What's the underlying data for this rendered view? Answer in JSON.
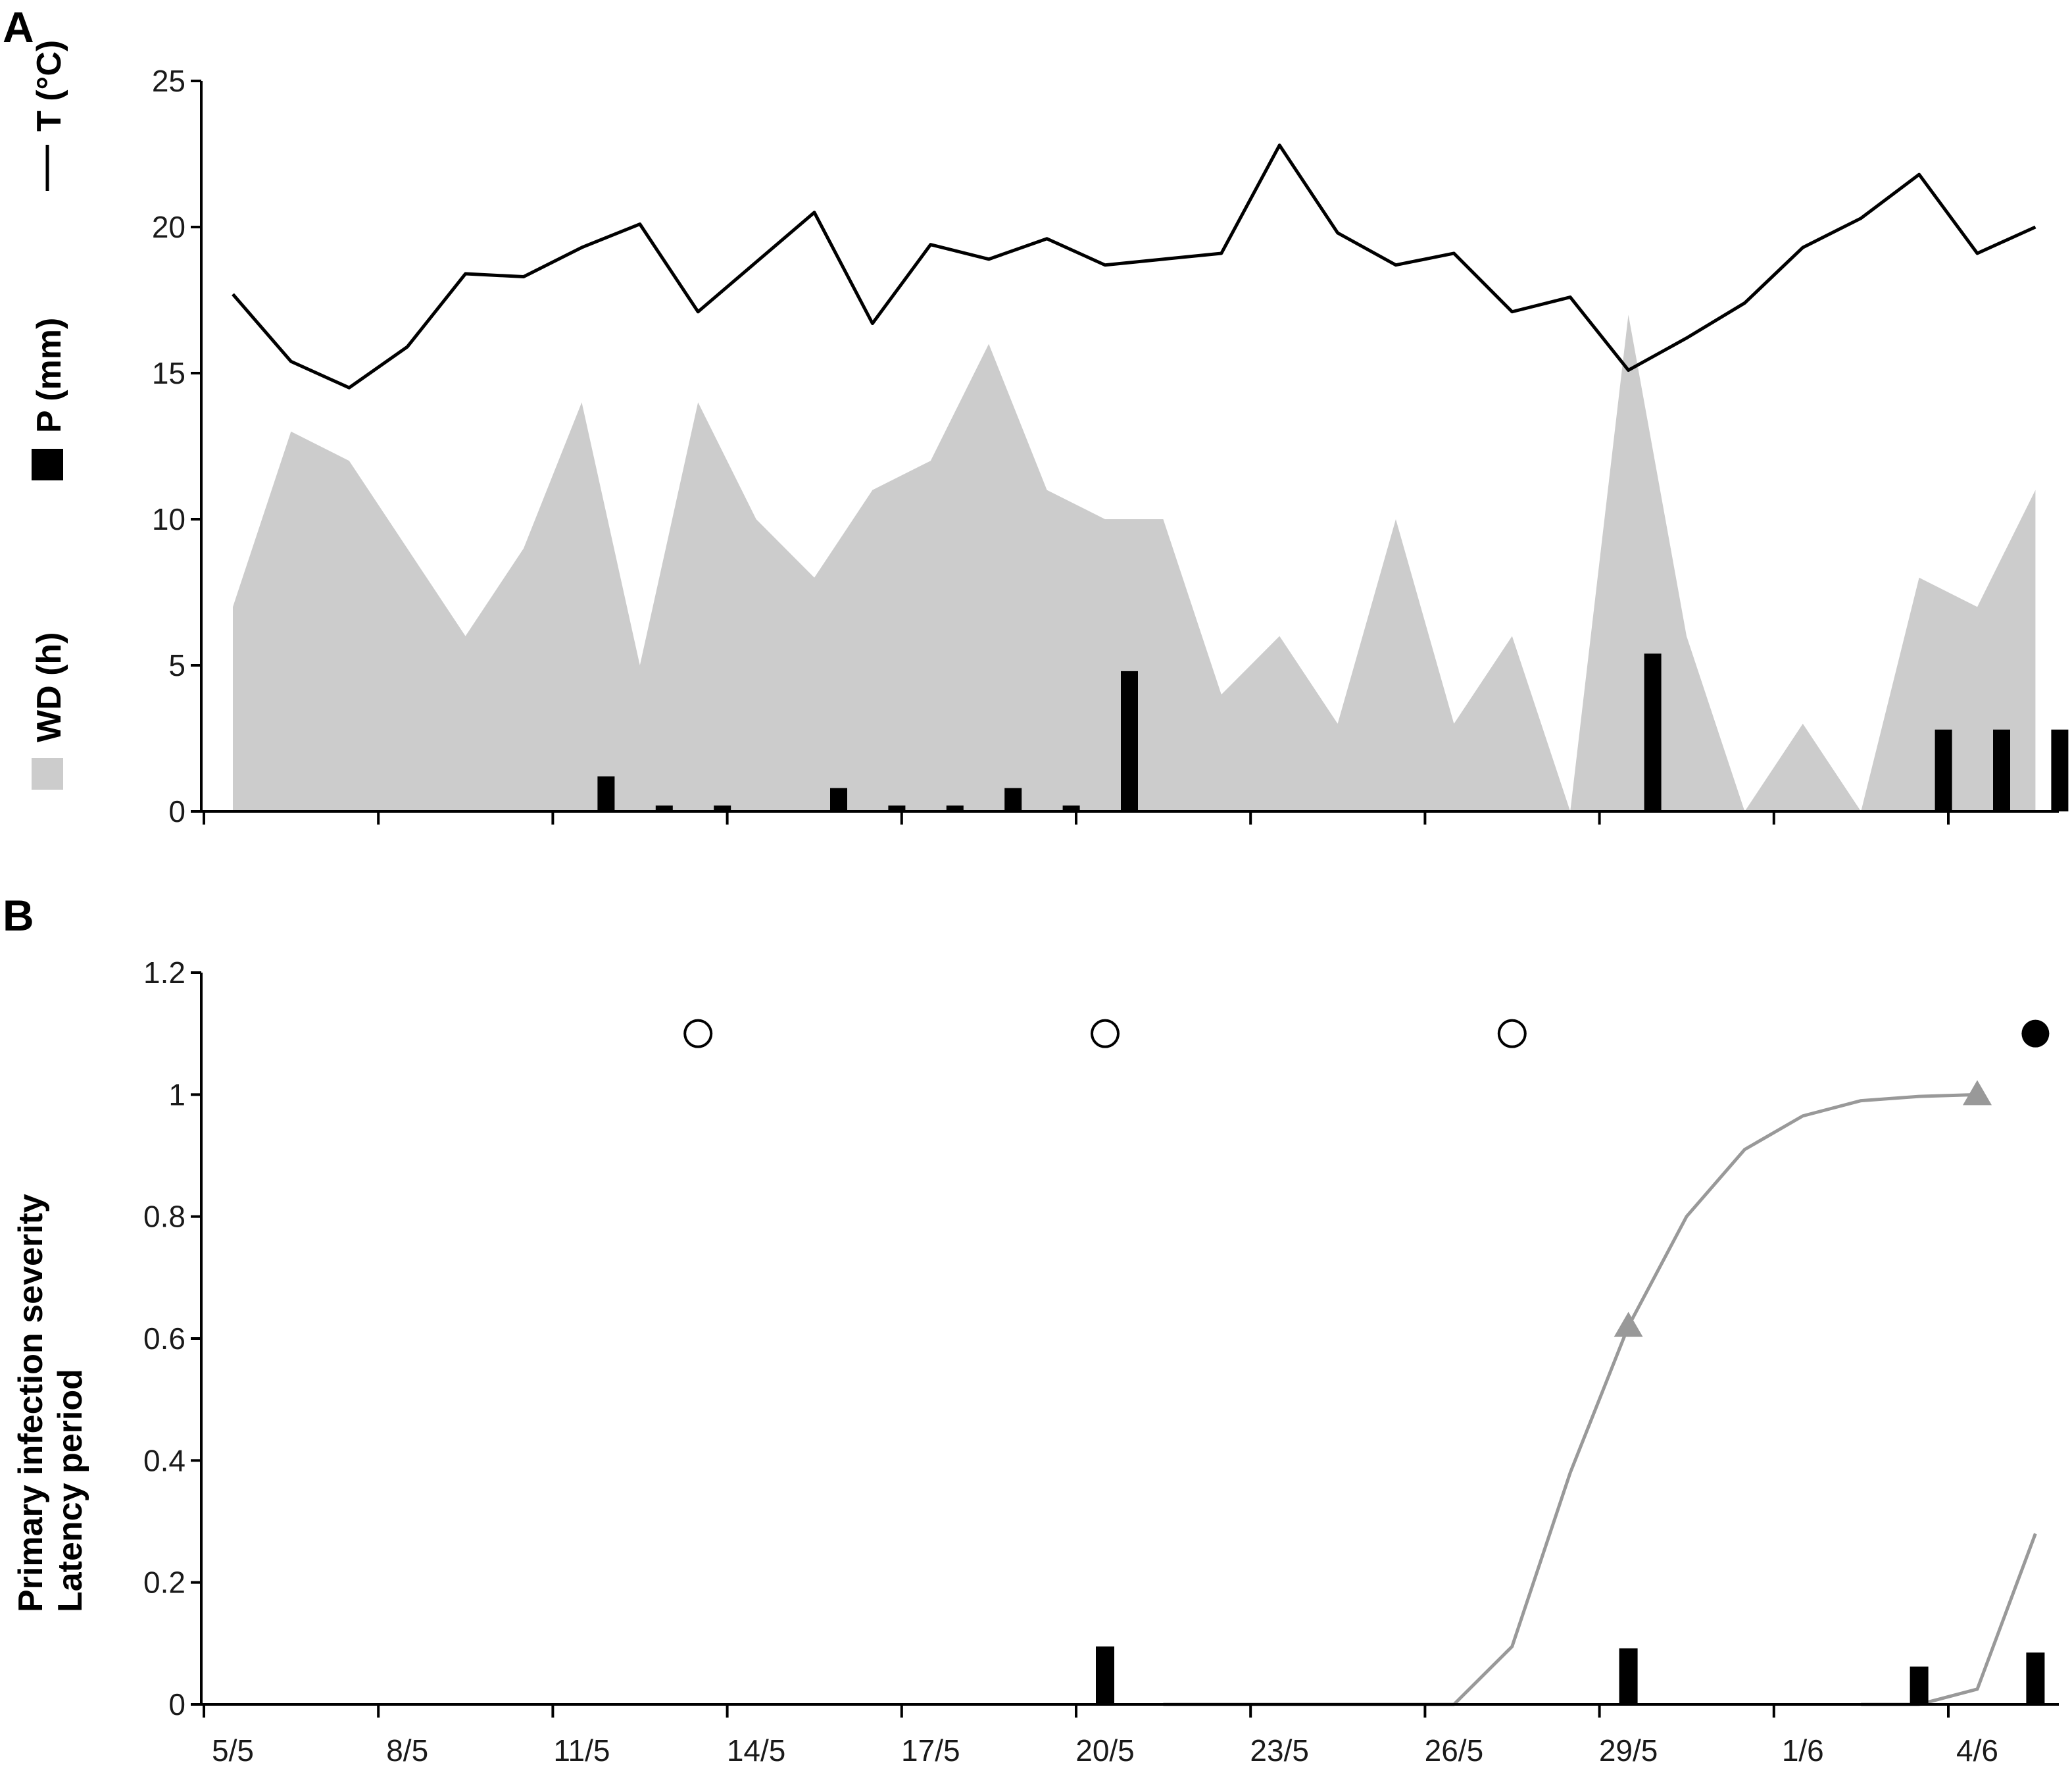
{
  "panel_labels": [
    "A",
    "B"
  ],
  "chart_data": [
    {
      "panel": "A",
      "type": "line",
      "x": [
        "5/5",
        "6/5",
        "7/5",
        "8/5",
        "9/5",
        "10/5",
        "11/5",
        "12/5",
        "13/5",
        "14/5",
        "15/5",
        "16/5",
        "17/5",
        "18/5",
        "19/5",
        "20/5",
        "21/5",
        "22/5",
        "23/5",
        "24/5",
        "25/5",
        "26/5",
        "27/5",
        "28/5",
        "29/5",
        "30/5",
        "31/5",
        "1/6",
        "2/6",
        "3/6",
        "4/6",
        "5/6"
      ],
      "xticks": [
        "5/5",
        "8/5",
        "11/5",
        "14/5",
        "17/5",
        "20/5",
        "23/5",
        "26/5",
        "29/5",
        "1/6",
        "4/6"
      ],
      "ylim": [
        0,
        25
      ],
      "yticks": [
        "0",
        "5",
        "10",
        "15",
        "20",
        "25"
      ],
      "ylabel_parts": [
        {
          "text": "WD (h)",
          "legend": "gray-area"
        },
        {
          "text": "P (mm)",
          "legend": "black-bar"
        },
        {
          "text": "T (°C)",
          "legend": "black-line"
        }
      ],
      "series": [
        {
          "name": "WD (h)",
          "type": "area",
          "color": "#cccccc",
          "values": [
            7,
            13,
            12,
            9,
            6,
            9,
            14,
            5,
            14,
            10,
            8,
            11,
            12,
            16,
            11,
            10,
            10,
            4,
            6,
            3,
            10,
            3,
            6,
            0,
            17,
            6,
            0,
            3,
            0,
            8,
            7,
            11
          ]
        },
        {
          "name": "P (mm)",
          "type": "bar",
          "color": "#000000",
          "values": [
            0,
            0,
            0,
            0,
            0,
            0,
            1.2,
            0.2,
            0.2,
            0,
            0.8,
            0.2,
            0.2,
            0.8,
            0.2,
            4.8,
            0,
            0,
            0,
            0,
            0,
            0,
            0,
            0,
            5.4,
            0,
            0,
            0,
            0,
            2.8,
            2.8,
            2.8
          ]
        },
        {
          "name": "T (°C)",
          "type": "line",
          "color": "#000000",
          "values": [
            17.7,
            15.4,
            14.5,
            15.9,
            18.4,
            18.3,
            19.3,
            20.1,
            17.1,
            18.8,
            20.5,
            16.7,
            19.4,
            18.9,
            19.6,
            18.7,
            18.9,
            19.1,
            22.8,
            19.8,
            18.7,
            19.1,
            17.1,
            17.6,
            15.1,
            16.2,
            17.4,
            19.3,
            20.3,
            21.8,
            19.1,
            20.0
          ]
        }
      ]
    },
    {
      "panel": "B",
      "type": "line",
      "x": [
        "5/5",
        "6/5",
        "7/5",
        "8/5",
        "9/5",
        "10/5",
        "11/5",
        "12/5",
        "13/5",
        "14/5",
        "15/5",
        "16/5",
        "17/5",
        "18/5",
        "19/5",
        "20/5",
        "21/5",
        "22/5",
        "23/5",
        "24/5",
        "25/5",
        "26/5",
        "27/5",
        "28/5",
        "29/5",
        "30/5",
        "31/5",
        "1/6",
        "2/6",
        "3/6",
        "4/6",
        "5/6"
      ],
      "xticks": [
        "5/5",
        "8/5",
        "11/5",
        "14/5",
        "17/5",
        "20/5",
        "23/5",
        "26/5",
        "29/5",
        "1/6",
        "4/6"
      ],
      "ylim": [
        0,
        1.2
      ],
      "yticks": [
        "0",
        "0.2",
        "0.4",
        "0.6",
        "0.8",
        "1",
        "1.2"
      ],
      "ylabel_lines": [
        "Primary infection severity",
        "Latency period"
      ],
      "series": [
        {
          "type": "bar",
          "color": "#000000",
          "points": [
            {
              "x": "20/5",
              "y": 0.095
            },
            {
              "x": "29/5",
              "y": 0.092
            },
            {
              "x": "3/6",
              "y": 0.062
            },
            {
              "x": "5/6",
              "y": 0.085
            }
          ]
        },
        {
          "type": "line",
          "color": "#999999",
          "points": [
            {
              "x": "21/5",
              "y": 0
            },
            {
              "x": "22/5",
              "y": 0
            },
            {
              "x": "23/5",
              "y": 0
            },
            {
              "x": "24/5",
              "y": 0
            },
            {
              "x": "25/5",
              "y": 0
            },
            {
              "x": "26/5",
              "y": 0
            },
            {
              "x": "27/5",
              "y": 0.095
            },
            {
              "x": "28/5",
              "y": 0.38
            },
            {
              "x": "29/5",
              "y": 0.62
            },
            {
              "x": "30/5",
              "y": 0.8
            },
            {
              "x": "31/5",
              "y": 0.91
            },
            {
              "x": "1/6",
              "y": 0.965
            },
            {
              "x": "2/6",
              "y": 0.99
            },
            {
              "x": "3/6",
              "y": 0.997
            },
            {
              "x": "4/6",
              "y": 1.0
            }
          ]
        },
        {
          "type": "line",
          "color": "#999999",
          "points": [
            {
              "x": "2/6",
              "y": 0
            },
            {
              "x": "3/6",
              "y": 0
            },
            {
              "x": "4/6",
              "y": 0.025
            },
            {
              "x": "5/6",
              "y": 0.28
            }
          ]
        },
        {
          "type": "marker",
          "marker": "triangle",
          "color": "#999999",
          "points": [
            {
              "x": "29/5",
              "y": 0.62
            },
            {
              "x": "4/6",
              "y": 1.0
            }
          ]
        },
        {
          "type": "marker",
          "marker": "open-circle",
          "color": "#000000",
          "points": [
            {
              "x": "13/5",
              "y": 1.1
            },
            {
              "x": "20/5",
              "y": 1.1
            },
            {
              "x": "27/5",
              "y": 1.1
            }
          ]
        },
        {
          "type": "marker",
          "marker": "filled-circle",
          "color": "#000000",
          "points": [
            {
              "x": "5/6",
              "y": 1.1
            }
          ]
        }
      ]
    }
  ]
}
